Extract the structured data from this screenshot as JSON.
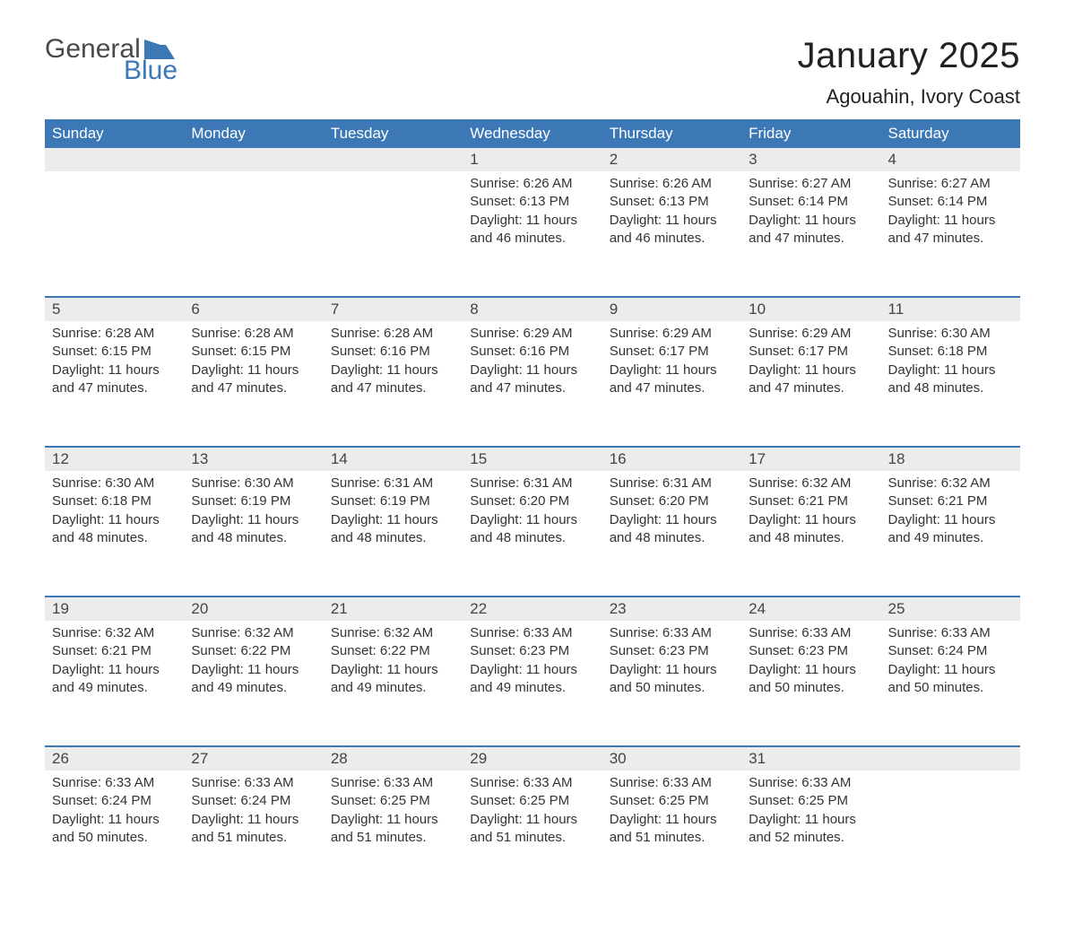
{
  "logo": {
    "text1": "General",
    "text2": "Blue",
    "shape_color": "#3b78b5",
    "text1_color": "#4a4a4a",
    "text2_color": "#3b78b5"
  },
  "title": {
    "month": "January 2025",
    "location": "Agouahin, Ivory Coast"
  },
  "colors": {
    "header_bg": "#3b78b5",
    "header_text": "#ffffff",
    "daynum_bg": "#ececec",
    "row_border": "#3b78b5",
    "body_text": "#333333",
    "background": "#ffffff"
  },
  "weekdays": [
    "Sunday",
    "Monday",
    "Tuesday",
    "Wednesday",
    "Thursday",
    "Friday",
    "Saturday"
  ],
  "weeks": [
    [
      null,
      null,
      null,
      {
        "n": "1",
        "sunrise": "6:26 AM",
        "sunset": "6:13 PM",
        "daylight": "11 hours and 46 minutes."
      },
      {
        "n": "2",
        "sunrise": "6:26 AM",
        "sunset": "6:13 PM",
        "daylight": "11 hours and 46 minutes."
      },
      {
        "n": "3",
        "sunrise": "6:27 AM",
        "sunset": "6:14 PM",
        "daylight": "11 hours and 47 minutes."
      },
      {
        "n": "4",
        "sunrise": "6:27 AM",
        "sunset": "6:14 PM",
        "daylight": "11 hours and 47 minutes."
      }
    ],
    [
      {
        "n": "5",
        "sunrise": "6:28 AM",
        "sunset": "6:15 PM",
        "daylight": "11 hours and 47 minutes."
      },
      {
        "n": "6",
        "sunrise": "6:28 AM",
        "sunset": "6:15 PM",
        "daylight": "11 hours and 47 minutes."
      },
      {
        "n": "7",
        "sunrise": "6:28 AM",
        "sunset": "6:16 PM",
        "daylight": "11 hours and 47 minutes."
      },
      {
        "n": "8",
        "sunrise": "6:29 AM",
        "sunset": "6:16 PM",
        "daylight": "11 hours and 47 minutes."
      },
      {
        "n": "9",
        "sunrise": "6:29 AM",
        "sunset": "6:17 PM",
        "daylight": "11 hours and 47 minutes."
      },
      {
        "n": "10",
        "sunrise": "6:29 AM",
        "sunset": "6:17 PM",
        "daylight": "11 hours and 47 minutes."
      },
      {
        "n": "11",
        "sunrise": "6:30 AM",
        "sunset": "6:18 PM",
        "daylight": "11 hours and 48 minutes."
      }
    ],
    [
      {
        "n": "12",
        "sunrise": "6:30 AM",
        "sunset": "6:18 PM",
        "daylight": "11 hours and 48 minutes."
      },
      {
        "n": "13",
        "sunrise": "6:30 AM",
        "sunset": "6:19 PM",
        "daylight": "11 hours and 48 minutes."
      },
      {
        "n": "14",
        "sunrise": "6:31 AM",
        "sunset": "6:19 PM",
        "daylight": "11 hours and 48 minutes."
      },
      {
        "n": "15",
        "sunrise": "6:31 AM",
        "sunset": "6:20 PM",
        "daylight": "11 hours and 48 minutes."
      },
      {
        "n": "16",
        "sunrise": "6:31 AM",
        "sunset": "6:20 PM",
        "daylight": "11 hours and 48 minutes."
      },
      {
        "n": "17",
        "sunrise": "6:32 AM",
        "sunset": "6:21 PM",
        "daylight": "11 hours and 48 minutes."
      },
      {
        "n": "18",
        "sunrise": "6:32 AM",
        "sunset": "6:21 PM",
        "daylight": "11 hours and 49 minutes."
      }
    ],
    [
      {
        "n": "19",
        "sunrise": "6:32 AM",
        "sunset": "6:21 PM",
        "daylight": "11 hours and 49 minutes."
      },
      {
        "n": "20",
        "sunrise": "6:32 AM",
        "sunset": "6:22 PM",
        "daylight": "11 hours and 49 minutes."
      },
      {
        "n": "21",
        "sunrise": "6:32 AM",
        "sunset": "6:22 PM",
        "daylight": "11 hours and 49 minutes."
      },
      {
        "n": "22",
        "sunrise": "6:33 AM",
        "sunset": "6:23 PM",
        "daylight": "11 hours and 49 minutes."
      },
      {
        "n": "23",
        "sunrise": "6:33 AM",
        "sunset": "6:23 PM",
        "daylight": "11 hours and 50 minutes."
      },
      {
        "n": "24",
        "sunrise": "6:33 AM",
        "sunset": "6:23 PM",
        "daylight": "11 hours and 50 minutes."
      },
      {
        "n": "25",
        "sunrise": "6:33 AM",
        "sunset": "6:24 PM",
        "daylight": "11 hours and 50 minutes."
      }
    ],
    [
      {
        "n": "26",
        "sunrise": "6:33 AM",
        "sunset": "6:24 PM",
        "daylight": "11 hours and 50 minutes."
      },
      {
        "n": "27",
        "sunrise": "6:33 AM",
        "sunset": "6:24 PM",
        "daylight": "11 hours and 51 minutes."
      },
      {
        "n": "28",
        "sunrise": "6:33 AM",
        "sunset": "6:25 PM",
        "daylight": "11 hours and 51 minutes."
      },
      {
        "n": "29",
        "sunrise": "6:33 AM",
        "sunset": "6:25 PM",
        "daylight": "11 hours and 51 minutes."
      },
      {
        "n": "30",
        "sunrise": "6:33 AM",
        "sunset": "6:25 PM",
        "daylight": "11 hours and 51 minutes."
      },
      {
        "n": "31",
        "sunrise": "6:33 AM",
        "sunset": "6:25 PM",
        "daylight": "11 hours and 52 minutes."
      },
      null
    ]
  ],
  "labels": {
    "sunrise": "Sunrise: ",
    "sunset": "Sunset: ",
    "daylight": "Daylight: "
  }
}
